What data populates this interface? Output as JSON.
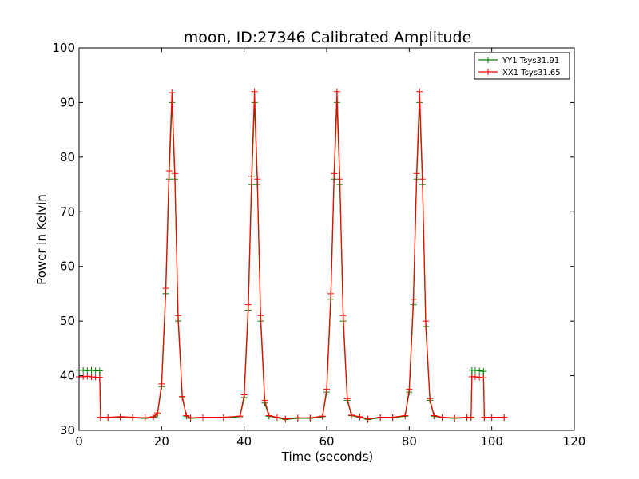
{
  "chart_data": {
    "type": "line",
    "title": "moon, ID:27346 Calibrated Amplitude",
    "xlabel": "Time (seconds)",
    "ylabel": "Power in Kelvin",
    "xlim": [
      0,
      120
    ],
    "ylim": [
      30,
      100
    ],
    "xticks": [
      0,
      20,
      40,
      60,
      80,
      100,
      120
    ],
    "yticks": [
      30,
      40,
      50,
      60,
      70,
      80,
      90,
      100
    ],
    "grid": false,
    "legend_position": "top-right",
    "marker": "+",
    "series": [
      {
        "name": "YY1 Tsys31.91",
        "color": "#008000",
        "points": [
          [
            0,
            41.0
          ],
          [
            1,
            41.0
          ],
          [
            2,
            40.9
          ],
          [
            3,
            41.0
          ],
          [
            4,
            40.9
          ],
          [
            5,
            40.9
          ],
          [
            5.2,
            32.3
          ],
          [
            7,
            32.3
          ],
          [
            10,
            32.4
          ],
          [
            13,
            32.3
          ],
          [
            16,
            32.2
          ],
          [
            18,
            32.4
          ],
          [
            19,
            33.0
          ],
          [
            20,
            38.0
          ],
          [
            21,
            55.0
          ],
          [
            21.8,
            76.0
          ],
          [
            22.5,
            90.0
          ],
          [
            23.2,
            76.0
          ],
          [
            24,
            50.0
          ],
          [
            25,
            36.0
          ],
          [
            26,
            32.6
          ],
          [
            27,
            32.2
          ],
          [
            30,
            32.3
          ],
          [
            35,
            32.3
          ],
          [
            39,
            32.5
          ],
          [
            40,
            36.0
          ],
          [
            41,
            52.0
          ],
          [
            41.8,
            75.0
          ],
          [
            42.5,
            90.0
          ],
          [
            43.2,
            75.0
          ],
          [
            44,
            50.0
          ],
          [
            45,
            35.0
          ],
          [
            46,
            32.6
          ],
          [
            48,
            32.3
          ],
          [
            50,
            32.0
          ],
          [
            53,
            32.2
          ],
          [
            56,
            32.2
          ],
          [
            59,
            32.5
          ],
          [
            60,
            37.0
          ],
          [
            61,
            54.0
          ],
          [
            61.8,
            76.0
          ],
          [
            62.5,
            90.0
          ],
          [
            63.2,
            75.0
          ],
          [
            64,
            50.0
          ],
          [
            65,
            35.5
          ],
          [
            66,
            32.7
          ],
          [
            68,
            32.4
          ],
          [
            70,
            32.0
          ],
          [
            73,
            32.3
          ],
          [
            76,
            32.3
          ],
          [
            79,
            32.6
          ],
          [
            80,
            37.0
          ],
          [
            81,
            53.0
          ],
          [
            81.8,
            76.0
          ],
          [
            82.5,
            90.0
          ],
          [
            83.2,
            75.0
          ],
          [
            84,
            49.0
          ],
          [
            85,
            35.5
          ],
          [
            86,
            32.6
          ],
          [
            88,
            32.3
          ],
          [
            91,
            32.2
          ],
          [
            94,
            32.3
          ],
          [
            95,
            32.3
          ],
          [
            95.2,
            41.0
          ],
          [
            96,
            41.0
          ],
          [
            97,
            40.9
          ],
          [
            98,
            40.8
          ],
          [
            98.2,
            32.3
          ],
          [
            100,
            32.3
          ],
          [
            103,
            32.3
          ]
        ]
      },
      {
        "name": "XX1 Tsys31.65",
        "color": "#ff0000",
        "points": [
          [
            0,
            39.8
          ],
          [
            1,
            39.8
          ],
          [
            2,
            39.9
          ],
          [
            3,
            39.8
          ],
          [
            4,
            39.7
          ],
          [
            5,
            39.7
          ],
          [
            5.2,
            32.4
          ],
          [
            7,
            32.4
          ],
          [
            10,
            32.5
          ],
          [
            13,
            32.4
          ],
          [
            16,
            32.3
          ],
          [
            18,
            32.5
          ],
          [
            19,
            33.2
          ],
          [
            20,
            38.5
          ],
          [
            21,
            56.0
          ],
          [
            21.8,
            77.5
          ],
          [
            22.5,
            91.8
          ],
          [
            23.2,
            77.0
          ],
          [
            24,
            51.0
          ],
          [
            25,
            36.2
          ],
          [
            26,
            32.7
          ],
          [
            27,
            32.3
          ],
          [
            30,
            32.4
          ],
          [
            35,
            32.4
          ],
          [
            39,
            32.6
          ],
          [
            40,
            36.5
          ],
          [
            41,
            53.0
          ],
          [
            41.8,
            76.5
          ],
          [
            42.5,
            92.0
          ],
          [
            43.2,
            76.0
          ],
          [
            44,
            51.0
          ],
          [
            45,
            35.5
          ],
          [
            46,
            32.7
          ],
          [
            48,
            32.4
          ],
          [
            50,
            32.1
          ],
          [
            53,
            32.3
          ],
          [
            56,
            32.3
          ],
          [
            59,
            32.6
          ],
          [
            60,
            37.5
          ],
          [
            61,
            55.0
          ],
          [
            61.8,
            77.0
          ],
          [
            62.5,
            92.0
          ],
          [
            63.2,
            76.0
          ],
          [
            64,
            51.0
          ],
          [
            65,
            35.8
          ],
          [
            66,
            32.8
          ],
          [
            68,
            32.5
          ],
          [
            70,
            32.1
          ],
          [
            73,
            32.4
          ],
          [
            76,
            32.4
          ],
          [
            79,
            32.7
          ],
          [
            80,
            37.5
          ],
          [
            81,
            54.0
          ],
          [
            81.8,
            77.0
          ],
          [
            82.5,
            92.0
          ],
          [
            83.2,
            76.0
          ],
          [
            84,
            50.0
          ],
          [
            85,
            35.8
          ],
          [
            86,
            32.7
          ],
          [
            88,
            32.4
          ],
          [
            91,
            32.3
          ],
          [
            94,
            32.4
          ],
          [
            95,
            32.4
          ],
          [
            95.2,
            39.8
          ],
          [
            96,
            39.8
          ],
          [
            97,
            39.7
          ],
          [
            98,
            39.6
          ],
          [
            98.2,
            32.4
          ],
          [
            100,
            32.4
          ],
          [
            103,
            32.4
          ]
        ]
      }
    ]
  }
}
